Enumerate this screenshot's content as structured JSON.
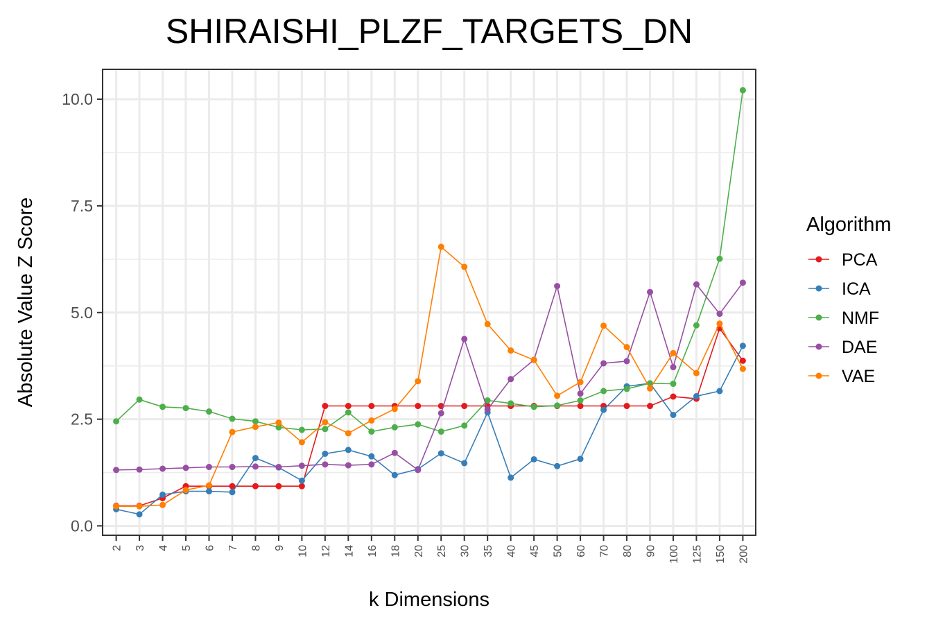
{
  "chart_data": {
    "type": "line",
    "title": "SHIRAISHI_PLZF_TARGETS_DN",
    "xlabel": "k Dimensions",
    "ylabel": "Absolute Value Z Score",
    "categories": [
      "2",
      "3",
      "4",
      "5",
      "6",
      "7",
      "8",
      "9",
      "10",
      "12",
      "14",
      "16",
      "18",
      "20",
      "25",
      "30",
      "35",
      "40",
      "45",
      "50",
      "60",
      "70",
      "80",
      "90",
      "100",
      "125",
      "150",
      "200"
    ],
    "y_ticks": [
      0.0,
      2.5,
      5.0,
      7.5,
      10.0
    ],
    "y_tick_labels": [
      "0.0",
      "2.5",
      "5.0",
      "7.5",
      "10.0"
    ],
    "ylim": [
      -0.22,
      10.7
    ],
    "grid": true,
    "legend": {
      "title": "Algorithm",
      "position": "right"
    },
    "series": [
      {
        "name": "PCA",
        "color": "#e41a1c",
        "values": [
          0.47,
          0.47,
          0.65,
          0.93,
          0.93,
          0.93,
          0.93,
          0.93,
          0.93,
          2.81,
          2.81,
          2.81,
          2.81,
          2.81,
          2.81,
          2.81,
          2.81,
          2.81,
          2.81,
          2.81,
          2.81,
          2.81,
          2.81,
          2.81,
          3.03,
          2.98,
          4.63,
          3.87
        ]
      },
      {
        "name": "ICA",
        "color": "#377eb8",
        "values": [
          0.39,
          0.27,
          0.73,
          0.81,
          0.81,
          0.79,
          1.59,
          1.37,
          1.06,
          1.69,
          1.78,
          1.63,
          1.19,
          1.33,
          1.7,
          1.47,
          2.66,
          1.13,
          1.56,
          1.4,
          1.57,
          2.72,
          3.27,
          3.34,
          2.6,
          3.04,
          3.16,
          4.22
        ]
      },
      {
        "name": "NMF",
        "color": "#4daf4a",
        "values": [
          2.45,
          2.96,
          2.79,
          2.76,
          2.68,
          2.51,
          2.45,
          2.31,
          2.25,
          2.27,
          2.66,
          2.21,
          2.31,
          2.38,
          2.21,
          2.35,
          2.94,
          2.87,
          2.79,
          2.82,
          2.94,
          3.16,
          3.21,
          3.34,
          3.33,
          4.7,
          6.26,
          10.21
        ]
      },
      {
        "name": "DAE",
        "color": "#984ea3",
        "values": [
          1.31,
          1.32,
          1.34,
          1.36,
          1.38,
          1.38,
          1.39,
          1.38,
          1.41,
          1.44,
          1.42,
          1.44,
          1.71,
          1.31,
          2.64,
          4.38,
          2.73,
          3.44,
          3.89,
          5.62,
          3.1,
          3.81,
          3.86,
          5.48,
          3.72,
          5.66,
          4.97,
          5.7
        ]
      },
      {
        "name": "VAE",
        "color": "#ff7f00",
        "values": [
          0.46,
          0.46,
          0.49,
          0.84,
          0.95,
          2.2,
          2.32,
          2.42,
          1.96,
          2.43,
          2.17,
          2.47,
          2.74,
          3.39,
          6.54,
          6.07,
          4.73,
          4.11,
          3.89,
          3.05,
          3.37,
          4.69,
          4.19,
          3.22,
          4.05,
          3.58,
          4.74,
          3.68
        ]
      }
    ]
  }
}
